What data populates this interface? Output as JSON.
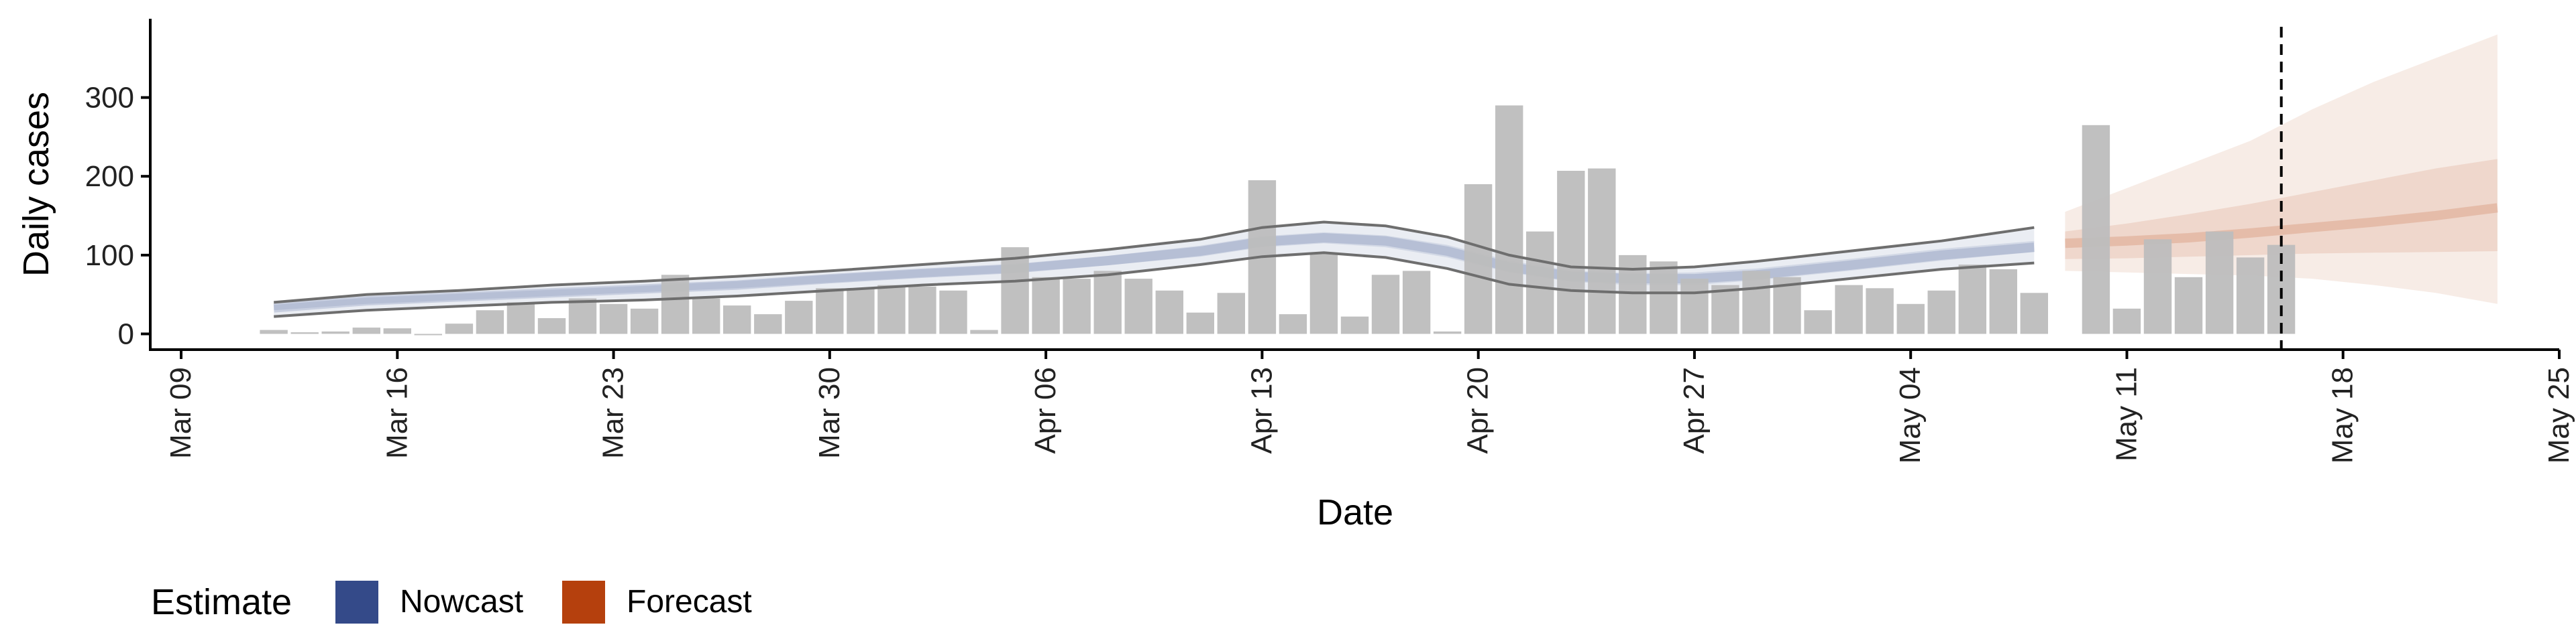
{
  "chart_data": {
    "type": "bar",
    "xlabel": "Date",
    "ylabel": "Daily cases",
    "ylim": [
      -20,
      400
    ],
    "y_ticks": [
      0,
      100,
      200,
      300
    ],
    "x_ticks": [
      "2020-03-09",
      "2020-03-16",
      "2020-03-23",
      "2020-03-30",
      "2020-04-06",
      "2020-04-13",
      "2020-04-20",
      "2020-04-27",
      "2020-05-04",
      "2020-05-11",
      "2020-05-18",
      "2020-05-25"
    ],
    "x_tick_labels": [
      "Mar 09",
      "Mar 16",
      "Mar 23",
      "Mar 30",
      "Apr 06",
      "Apr 13",
      "Apr 20",
      "Apr 27",
      "May 04",
      "May 11",
      "May 18",
      "May 25"
    ],
    "x_range": [
      "2020-03-08",
      "2020-05-25"
    ],
    "grid": false,
    "legend_position": "bottom-left",
    "reference_line_date": "2020-05-16",
    "colors": {
      "bars": "#bdbdbd",
      "nowcast": "#344a89",
      "forecast": "#b5400d",
      "reference_line": "#000000",
      "band_outline": "#6e6e6e"
    },
    "observed_cases": {
      "dates": [
        "2020-03-12",
        "2020-03-13",
        "2020-03-14",
        "2020-03-15",
        "2020-03-16",
        "2020-03-17",
        "2020-03-18",
        "2020-03-19",
        "2020-03-20",
        "2020-03-21",
        "2020-03-22",
        "2020-03-23",
        "2020-03-24",
        "2020-03-25",
        "2020-03-26",
        "2020-03-27",
        "2020-03-28",
        "2020-03-29",
        "2020-03-30",
        "2020-03-31",
        "2020-04-01",
        "2020-04-02",
        "2020-04-03",
        "2020-04-04",
        "2020-04-05",
        "2020-04-06",
        "2020-04-07",
        "2020-04-08",
        "2020-04-09",
        "2020-04-10",
        "2020-04-11",
        "2020-04-12",
        "2020-04-13",
        "2020-04-14",
        "2020-04-15",
        "2020-04-16",
        "2020-04-17",
        "2020-04-18",
        "2020-04-19",
        "2020-04-20",
        "2020-04-21",
        "2020-04-22",
        "2020-04-23",
        "2020-04-24",
        "2020-04-25",
        "2020-04-26",
        "2020-04-27",
        "2020-04-28",
        "2020-04-29",
        "2020-04-30",
        "2020-05-01",
        "2020-05-02",
        "2020-05-03",
        "2020-05-04",
        "2020-05-05",
        "2020-05-06",
        "2020-05-07",
        "2020-05-08",
        "2020-05-10",
        "2020-05-11",
        "2020-05-12",
        "2020-05-13",
        "2020-05-14",
        "2020-05-15",
        "2020-05-16"
      ],
      "values": [
        5,
        2,
        3,
        8,
        7,
        0,
        13,
        30,
        40,
        20,
        45,
        38,
        32,
        75,
        45,
        36,
        25,
        42,
        58,
        58,
        62,
        60,
        55,
        5,
        110,
        72,
        70,
        80,
        70,
        55,
        27,
        52,
        195,
        25,
        103,
        22,
        75,
        80,
        3,
        190,
        290,
        130,
        207,
        210,
        100,
        92,
        70,
        62,
        80,
        72,
        30,
        62,
        58,
        38,
        55,
        88,
        82,
        52,
        265,
        32,
        120,
        72,
        130,
        97,
        113
      ]
    },
    "series": [
      {
        "name": "Nowcast",
        "dates": [
          "2020-03-12",
          "2020-03-15",
          "2020-03-18",
          "2020-03-21",
          "2020-03-24",
          "2020-03-27",
          "2020-03-30",
          "2020-04-02",
          "2020-04-05",
          "2020-04-08",
          "2020-04-11",
          "2020-04-13",
          "2020-04-15",
          "2020-04-17",
          "2020-04-19",
          "2020-04-21",
          "2020-04-23",
          "2020-04-25",
          "2020-04-27",
          "2020-04-29",
          "2020-05-02",
          "2020-05-05",
          "2020-05-08"
        ],
        "median": [
          33,
          42,
          47,
          52,
          57,
          62,
          70,
          77,
          83,
          93,
          105,
          117,
          122,
          118,
          105,
          85,
          73,
          70,
          70,
          75,
          87,
          100,
          110
        ],
        "lower_50": [
          30,
          38,
          43,
          48,
          53,
          58,
          65,
          72,
          78,
          87,
          98,
          110,
          115,
          110,
          97,
          78,
          66,
          62,
          62,
          68,
          80,
          93,
          104
        ],
        "upper_50": [
          37,
          46,
          51,
          56,
          61,
          67,
          75,
          82,
          88,
          99,
          112,
          124,
          129,
          125,
          113,
          93,
          80,
          77,
          78,
          83,
          95,
          108,
          118
        ],
        "lower_90": [
          22,
          30,
          35,
          40,
          43,
          48,
          55,
          62,
          67,
          75,
          88,
          98,
          103,
          97,
          83,
          63,
          55,
          52,
          52,
          58,
          70,
          82,
          90
        ],
        "upper_90": [
          40,
          50,
          55,
          62,
          67,
          73,
          80,
          88,
          96,
          107,
          120,
          135,
          142,
          137,
          123,
          100,
          85,
          82,
          85,
          92,
          105,
          118,
          135
        ]
      },
      {
        "name": "Forecast",
        "dates": [
          "2020-05-09",
          "2020-05-11",
          "2020-05-13",
          "2020-05-15",
          "2020-05-17",
          "2020-05-19",
          "2020-05-21",
          "2020-05-23"
        ],
        "median": [
          115,
          118,
          122,
          128,
          135,
          142,
          150,
          160
        ],
        "lower_50": [
          95,
          96,
          98,
          100,
          102,
          103,
          104,
          105
        ],
        "upper_50": [
          130,
          140,
          152,
          165,
          180,
          195,
          210,
          222
        ],
        "lower_90": [
          80,
          78,
          76,
          74,
          70,
          62,
          52,
          38
        ],
        "upper_90": [
          155,
          185,
          215,
          245,
          285,
          320,
          350,
          380
        ]
      }
    ],
    "legend": {
      "title": "Estimate",
      "entries": [
        {
          "label": "Nowcast",
          "color": "#344a89"
        },
        {
          "label": "Forecast",
          "color": "#b5400d"
        }
      ]
    }
  }
}
